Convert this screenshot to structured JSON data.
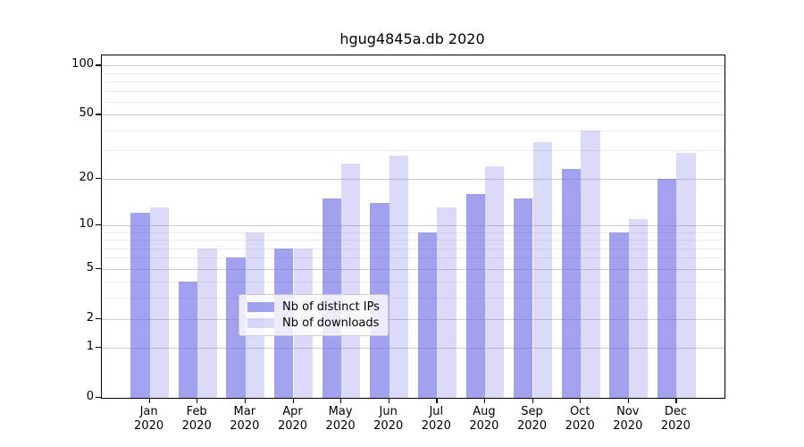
{
  "title": "hgug4845a.db 2020",
  "legend": {
    "items": [
      {
        "label": "Nb of distinct IPs",
        "color": "rgba(110,110,230,0.65)"
      },
      {
        "label": "Nb of downloads",
        "color": "rgba(110,110,230,0.25)"
      }
    ],
    "position": "lower center"
  },
  "colors": {
    "bar_distinct_ips": "rgba(110,110,230,0.65)",
    "bar_downloads": "rgba(110,110,230,0.25)",
    "grid_major": "#cccccc",
    "grid_minor": "#ececec",
    "spine": "#000000",
    "background": "#ffffff"
  },
  "chart_data": {
    "type": "bar",
    "title": "hgug4845a.db 2020",
    "categories": [
      "Jan",
      "Feb",
      "Mar",
      "Apr",
      "May",
      "Jun",
      "Jul",
      "Aug",
      "Sep",
      "Oct",
      "Nov",
      "Dec"
    ],
    "year_label": "2020",
    "series": [
      {
        "name": "Nb of distinct IPs",
        "values": [
          12,
          4,
          6,
          7,
          15,
          14,
          9,
          16,
          15,
          23,
          9,
          20
        ]
      },
      {
        "name": "Nb of downloads",
        "values": [
          13,
          7,
          9,
          7,
          25,
          28,
          13,
          24,
          34,
          40,
          11,
          29
        ]
      }
    ],
    "xlabel": "",
    "ylabel": "",
    "yscale": "log1p",
    "yticks_major": [
      0,
      1,
      2,
      5,
      10,
      20,
      50,
      100
    ],
    "yticks_minor": [
      3,
      4,
      6,
      7,
      8,
      9,
      30,
      40,
      60,
      70,
      80,
      90
    ],
    "ylim_top_log1p_decades": 2.065,
    "xlim": [
      -1,
      12
    ],
    "bar_width_units": 0.4,
    "grid": true,
    "legend_position": "lower center"
  }
}
